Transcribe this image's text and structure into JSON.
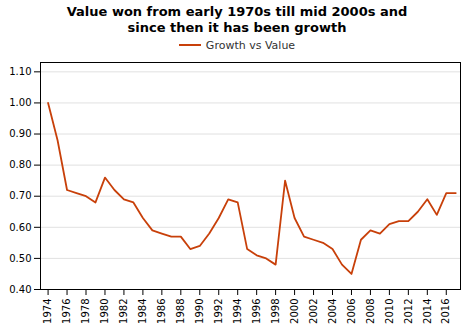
{
  "chart_data": {
    "type": "line",
    "title": "Value won from early 1970s till mid 2000s and\nsince then it has been growth",
    "x": [
      1974,
      1975,
      1976,
      1977,
      1978,
      1979,
      1980,
      1981,
      1982,
      1983,
      1984,
      1985,
      1986,
      1987,
      1988,
      1989,
      1990,
      1991,
      1992,
      1993,
      1994,
      1995,
      1996,
      1997,
      1998,
      1999,
      2000,
      2001,
      2002,
      2003,
      2004,
      2005,
      2006,
      2007,
      2008,
      2009,
      2010,
      2011,
      2012,
      2013,
      2014,
      2015,
      2016,
      2017
    ],
    "series": [
      {
        "name": "Growth vs Value",
        "color": "#C8400A",
        "values": [
          1.0,
          0.88,
          0.72,
          0.71,
          0.7,
          0.68,
          0.76,
          0.72,
          0.69,
          0.68,
          0.63,
          0.59,
          0.58,
          0.57,
          0.57,
          0.53,
          0.54,
          0.58,
          0.63,
          0.69,
          0.68,
          0.53,
          0.51,
          0.5,
          0.48,
          0.75,
          0.63,
          0.57,
          0.56,
          0.55,
          0.53,
          0.48,
          0.45,
          0.56,
          0.59,
          0.58,
          0.61,
          0.62,
          0.62,
          0.65,
          0.69,
          0.64,
          0.71,
          0.71
        ]
      }
    ],
    "xlim": [
      1973.2,
      2017.5
    ],
    "xticks": [
      1974,
      1976,
      1978,
      1980,
      1982,
      1984,
      1986,
      1988,
      1990,
      1992,
      1994,
      1996,
      1998,
      2000,
      2002,
      2004,
      2006,
      2008,
      2010,
      2012,
      2014,
      2016
    ],
    "ylim": [
      0.4,
      1.13
    ],
    "yticks": [
      {
        "value": 0.4,
        "label": "0.40"
      },
      {
        "value": 0.5,
        "label": "0.50"
      },
      {
        "value": 0.6,
        "label": "0.60"
      },
      {
        "value": 0.7,
        "label": "0.70"
      },
      {
        "value": 0.8,
        "label": "0.80"
      },
      {
        "value": 0.9,
        "label": "0.90"
      },
      {
        "value": 1.0,
        "label": "1.00"
      },
      {
        "value": 1.1,
        "label": "1.10"
      }
    ],
    "grid": true,
    "legend": "upper center"
  }
}
